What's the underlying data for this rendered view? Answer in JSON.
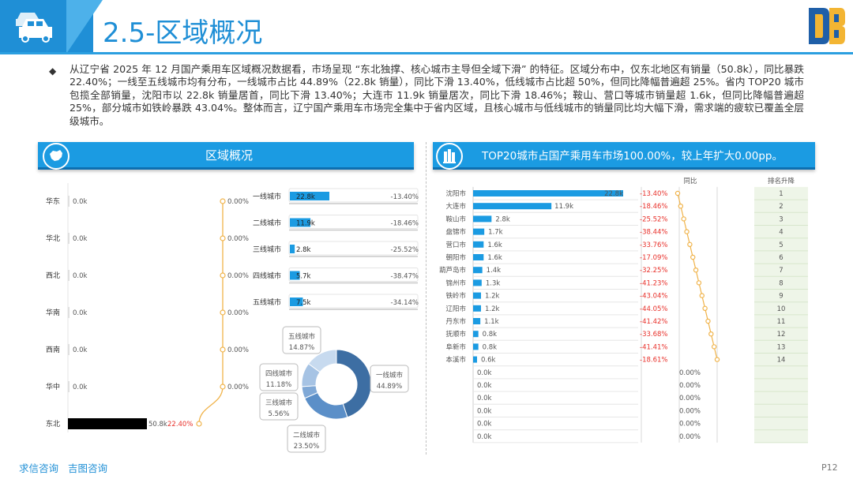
{
  "header": {
    "title": "2.5-区域概况",
    "logo_text": "DB"
  },
  "intro": "从辽宁省 2025 年 12 月国产乘用车区域概况数据看，市场呈现 “东北独撑、核心城市主导但全域下滑” 的特征。区域分布中，仅东北地区有销量（50.8k），同比暴跌 22.40%；一线至五线城市均有分布，一线城市占比 44.89%（22.8k 销量），同比下滑 13.40%，低线城市占比超 50%，但同比降幅普遍超 25%。省内 TOP20 城市包揽全部销量，沈阳市以 22.8k 销量居首，同比下滑 13.40%；大连市 11.9k 销量居次，同比下滑 18.46%；鞍山、营口等城市销量超 1.6k，但同比降幅普遍超 25%，部分城市如铁岭暴跌 43.04%。整体而言，辽宁国产乘用车市场完全集中于省内区域，且核心城市与低线城市的销量同比均大幅下滑，需求端的疲软已覆盖全层级城市。",
  "left_panel": {
    "title": "区域概况"
  },
  "right_panel": {
    "title": "TOP20城市占国产乘用车市场100.00%，较上年扩大0.00pp。"
  },
  "footer": {
    "links": [
      "求信咨询",
      "吉图咨询"
    ],
    "page": "P12"
  },
  "colors": {
    "brand": "#1f8fd6",
    "bar": "#1b9be2",
    "negative": "#e8302a",
    "line": "#f0b34a",
    "rank_bg": "#eef5e8",
    "black_bar": "#000000"
  },
  "chart_data": [
    {
      "type": "bar",
      "name": "region",
      "categories": [
        "华东",
        "华北",
        "西北",
        "华南",
        "西南",
        "华中",
        "东北"
      ],
      "values": [
        0,
        0,
        0,
        0,
        0,
        0,
        50.8
      ],
      "value_labels": [
        "0.0k",
        "0.0k",
        "0.0k",
        "0.0k",
        "0.0k",
        "0.0k",
        "50.8k"
      ],
      "yoy_labels": [
        "0.00%",
        "0.00%",
        "0.00%",
        "0.00%",
        "0.00%",
        "0.00%",
        "22.40%"
      ]
    },
    {
      "type": "bar",
      "name": "city_tier",
      "categories": [
        "一线城市",
        "二线城市",
        "三线城市",
        "四线城市",
        "五线城市"
      ],
      "values": [
        22.8,
        11.9,
        2.8,
        5.7,
        7.5
      ],
      "value_labels": [
        "22.8k",
        "11.9k",
        "2.8k",
        "5.7k",
        "7.5k"
      ],
      "yoy_labels": [
        "-13.40%",
        "-18.46%",
        "-25.52%",
        "-38.47%",
        "-34.14%"
      ]
    },
    {
      "type": "pie",
      "name": "tier_share",
      "labels": [
        "一线城市",
        "二线城市",
        "三线城市",
        "四线城市",
        "五线城市"
      ],
      "values": [
        44.89,
        23.5,
        5.56,
        11.18,
        14.87
      ],
      "value_labels": [
        "44.89%",
        "23.50%",
        "5.56%",
        "11.18%",
        "14.87%"
      ],
      "colors": [
        "#3d6ea3",
        "#5b8fc8",
        "#7fa8d6",
        "#a6c3e4",
        "#c7daef"
      ]
    },
    {
      "type": "bar",
      "name": "top_cities",
      "yoy_header": "同比",
      "rank_header": "排名升降",
      "categories": [
        "沈阳市",
        "大连市",
        "鞍山市",
        "盘锦市",
        "营口市",
        "朝阳市",
        "葫芦岛市",
        "锦州市",
        "铁岭市",
        "辽阳市",
        "丹东市",
        "抚顺市",
        "阜新市",
        "本溪市",
        "",
        "",
        "",
        "",
        "",
        ""
      ],
      "values": [
        22.8,
        11.9,
        2.8,
        1.7,
        1.6,
        1.6,
        1.4,
        1.3,
        1.2,
        1.2,
        1.1,
        0.8,
        0.8,
        0.6,
        0,
        0,
        0,
        0,
        0,
        0
      ],
      "value_labels": [
        "22.8k",
        "11.9k",
        "2.8k",
        "1.7k",
        "1.6k",
        "1.6k",
        "1.4k",
        "1.3k",
        "1.2k",
        "1.2k",
        "1.1k",
        "0.8k",
        "0.8k",
        "0.6k",
        "0.0k",
        "0.0k",
        "0.0k",
        "0.0k",
        "0.0k",
        "0.0k"
      ],
      "yoy_labels": [
        "-13.40%",
        "-18.46%",
        "-25.52%",
        "-38.44%",
        "-33.76%",
        "-17.09%",
        "-32.25%",
        "-41.23%",
        "-43.04%",
        "-44.05%",
        "-41.42%",
        "-33.68%",
        "-41.41%",
        "-18.61%",
        "0.00%",
        "0.00%",
        "0.00%",
        "0.00%",
        "0.00%",
        "0.00%"
      ],
      "ranks": [
        "1",
        "2",
        "3",
        "4",
        "5",
        "6",
        "7",
        "8",
        "9",
        "10",
        "11",
        "12",
        "13",
        "14",
        "",
        "",
        "",
        "",
        "",
        ""
      ]
    }
  ]
}
